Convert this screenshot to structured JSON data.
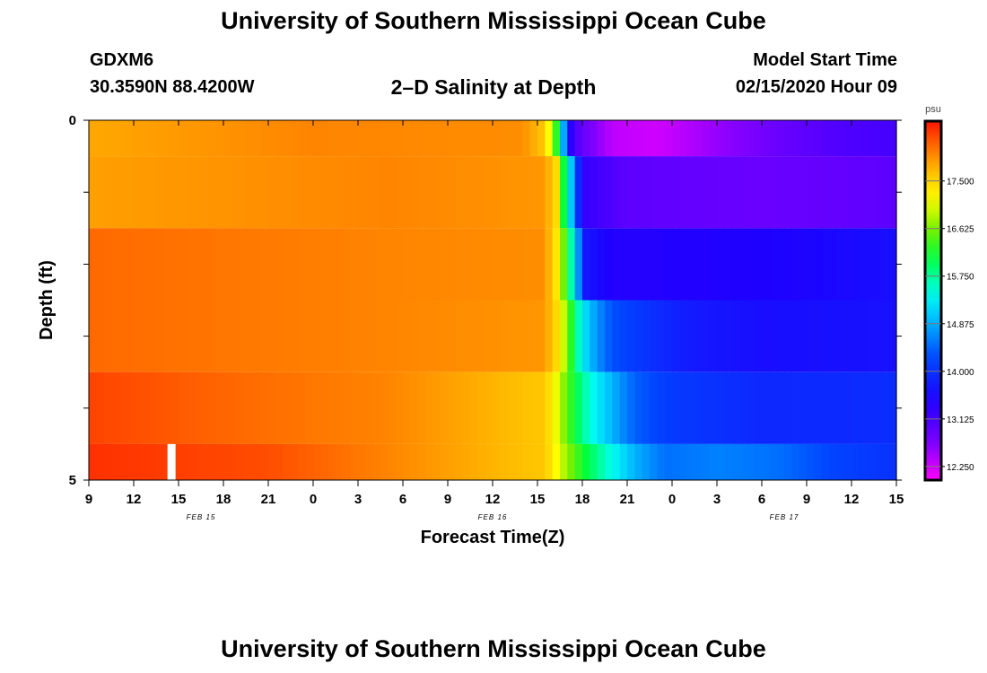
{
  "header": {
    "title": "University of Southern Mississippi Ocean Cube",
    "station_id": "GDXM6",
    "station_coords": "30.3590N 88.4200W",
    "plot_title": "2–D Salinity at Depth",
    "model_start_label": "Model Start Time",
    "model_start_value": "02/15/2020 Hour 09"
  },
  "footer": {
    "title": "University of Southern Mississippi Ocean Cube"
  },
  "colors": {
    "background": "#ffffff",
    "axis": "#000000"
  },
  "chart_data": {
    "type": "heatmap",
    "title": "2–D Salinity at Depth",
    "xlabel": "Forecast Time(Z)",
    "ylabel": "Depth (ft)",
    "x_range_hours": [
      0,
      54
    ],
    "y_range": [
      0,
      5
    ],
    "x_tick_labels": [
      "9",
      "12",
      "15",
      "18",
      "21",
      "0",
      "3",
      "6",
      "9",
      "12",
      "15",
      "18",
      "21",
      "0",
      "3",
      "6",
      "9",
      "12",
      "15"
    ],
    "y_tick_labels": [
      "0",
      "5"
    ],
    "date_labels": [
      {
        "hour": 7.5,
        "label": "FEB 15"
      },
      {
        "hour": 27,
        "label": "FEB 16"
      },
      {
        "hour": 46.5,
        "label": "FEB 17"
      }
    ],
    "colorbar": {
      "units": "psu",
      "min": 12.0,
      "max": 18.6,
      "tick_labels": [
        "17.500",
        "16.625",
        "15.750",
        "14.875",
        "14.000",
        "13.125",
        "12.250"
      ],
      "tick_values": [
        17.5,
        16.625,
        15.75,
        14.875,
        14.0,
        13.125,
        12.25
      ]
    },
    "missing_data_hour": 5.5,
    "layer_depths_ft": [
      0.25,
      1.0,
      2.0,
      3.0,
      4.0,
      4.75
    ],
    "layers": [
      {
        "name": "surface",
        "depth_range": [
          0,
          0.5
        ],
        "key": [
          [
            0,
            17.8
          ],
          [
            15,
            18.0
          ],
          [
            29,
            17.95
          ],
          [
            30.5,
            17.6
          ],
          [
            31.3,
            16.2
          ],
          [
            31.7,
            15.0
          ],
          [
            32.3,
            13.2
          ],
          [
            33,
            12.9
          ],
          [
            34,
            12.6
          ],
          [
            35,
            12.35
          ],
          [
            38,
            12.25
          ],
          [
            42,
            12.55
          ],
          [
            46,
            12.85
          ],
          [
            50,
            13.05
          ],
          [
            54,
            13.15
          ]
        ]
      },
      {
        "name": "layer-2",
        "depth_range": [
          0.5,
          1.5
        ],
        "key": [
          [
            0,
            17.85
          ],
          [
            20,
            18.0
          ],
          [
            30.5,
            17.9
          ],
          [
            31.3,
            17.4
          ],
          [
            31.8,
            16.0
          ],
          [
            32.5,
            14.5
          ],
          [
            33,
            13.3
          ],
          [
            36,
            12.95
          ],
          [
            45,
            12.85
          ],
          [
            54,
            12.95
          ]
        ]
      },
      {
        "name": "layer-3",
        "depth_range": [
          1.5,
          2.5
        ],
        "key": [
          [
            0,
            18.15
          ],
          [
            20,
            18.0
          ],
          [
            30.5,
            17.95
          ],
          [
            31.3,
            17.3
          ],
          [
            32,
            16.2
          ],
          [
            32.6,
            15.0
          ],
          [
            33.2,
            13.7
          ],
          [
            35,
            13.4
          ],
          [
            45,
            13.45
          ],
          [
            54,
            13.6
          ]
        ]
      },
      {
        "name": "layer-4",
        "depth_range": [
          2.5,
          3.5
        ],
        "key": [
          [
            0,
            18.15
          ],
          [
            20,
            18.0
          ],
          [
            30.5,
            17.9
          ],
          [
            31.5,
            17.3
          ],
          [
            32.3,
            16.2
          ],
          [
            33,
            15.3
          ],
          [
            34,
            14.7
          ],
          [
            35,
            14.3
          ],
          [
            37,
            14.05
          ],
          [
            40,
            13.75
          ],
          [
            45,
            13.6
          ],
          [
            54,
            13.65
          ]
        ]
      },
      {
        "name": "layer-5",
        "depth_range": [
          3.5,
          4.5
        ],
        "key": [
          [
            0,
            18.35
          ],
          [
            10,
            18.15
          ],
          [
            20,
            18.0
          ],
          [
            30.5,
            17.6
          ],
          [
            31.5,
            16.9
          ],
          [
            32.5,
            16.1
          ],
          [
            33.5,
            15.5
          ],
          [
            35,
            14.9
          ],
          [
            36.5,
            14.4
          ],
          [
            39,
            14.1
          ],
          [
            45,
            13.9
          ],
          [
            54,
            13.95
          ]
        ]
      },
      {
        "name": "bottom",
        "depth_range": [
          4.5,
          5.0
        ],
        "key": [
          [
            0,
            18.45
          ],
          [
            12,
            18.3
          ],
          [
            20,
            18.0
          ],
          [
            30.5,
            17.6
          ],
          [
            31.5,
            17.0
          ],
          [
            33,
            16.2
          ],
          [
            34.5,
            15.6
          ],
          [
            36.5,
            14.9
          ],
          [
            38.5,
            14.5
          ],
          [
            42,
            14.6
          ],
          [
            46,
            14.5
          ],
          [
            50,
            14.2
          ],
          [
            54,
            14.0
          ]
        ]
      }
    ]
  }
}
